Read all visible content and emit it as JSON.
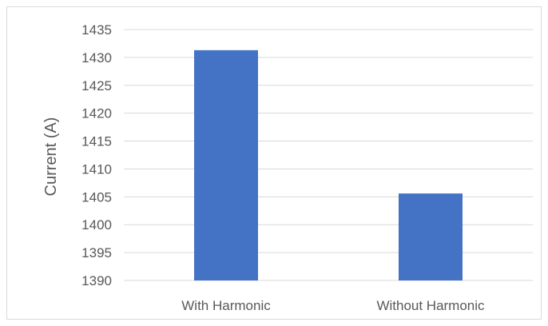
{
  "chart_data": {
    "type": "bar",
    "categories": [
      "With Harmonic",
      "Without Harmonic"
    ],
    "values": [
      1431.3,
      1405.6
    ],
    "title": "",
    "xlabel": "",
    "ylabel": "Current (A)",
    "ylim": [
      1390,
      1435
    ],
    "yticks": [
      1390,
      1395,
      1400,
      1405,
      1410,
      1415,
      1420,
      1425,
      1430,
      1435
    ],
    "grid": true,
    "bar_color": "#4472C4",
    "grid_color": "#d9d9d9"
  }
}
